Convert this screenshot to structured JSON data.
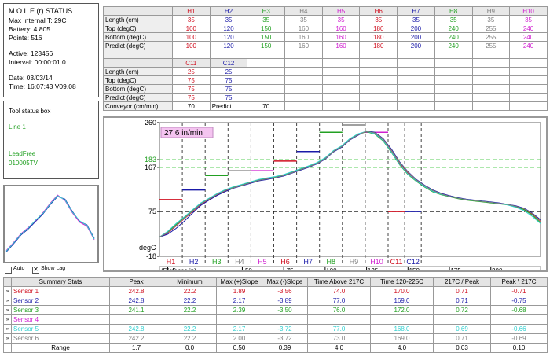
{
  "status": {
    "title": "M.O.L.E.(r) STATUS",
    "internal_temp": "Max Internal T: 29C",
    "battery": "Battery: 4.805",
    "points": "Points: 516",
    "active": "Active: 123456",
    "interval": "Interval: 00:00:01.0",
    "date": "Date: 03/03/14",
    "time": "Time: 16:07:43  V09.08"
  },
  "tool_status": {
    "title": "Tool status box",
    "line": "Line 1",
    "paste": "LeadFree",
    "code": "010005TV"
  },
  "preview": {
    "auto_label": "Auto",
    "show_lag_label": "Show Lag"
  },
  "zone_table": {
    "headers": [
      "H1",
      "H2",
      "H3",
      "H4",
      "H5",
      "H6",
      "H7",
      "H8",
      "H9",
      "H10"
    ],
    "header_colors": [
      "#d01020",
      "#1a1aa8",
      "#22a022",
      "#808080",
      "#d020d0",
      "#d01020",
      "#1a1aa8",
      "#22a022",
      "#808080",
      "#d020d0"
    ],
    "rows": [
      {
        "label": "Length (cm)",
        "values": [
          "35",
          "35",
          "35",
          "35",
          "35",
          "35",
          "35",
          "35",
          "35",
          "35"
        ]
      },
      {
        "label": "Top (degC)",
        "values": [
          "100",
          "120",
          "150",
          "160",
          "160",
          "180",
          "200",
          "240",
          "255",
          "240"
        ]
      },
      {
        "label": "Bottom (degC)",
        "values": [
          "100",
          "120",
          "150",
          "160",
          "160",
          "180",
          "200",
          "240",
          "255",
          "240"
        ]
      },
      {
        "label": "Predict (degC)",
        "values": [
          "100",
          "120",
          "150",
          "160",
          "160",
          "180",
          "200",
          "240",
          "255",
          "240"
        ]
      }
    ],
    "headers2": [
      "C11",
      "C12"
    ],
    "header2_colors": [
      "#d01020",
      "#1a1aa8"
    ],
    "rows2": [
      {
        "label": "Length (cm)",
        "values": [
          "25",
          "25"
        ]
      },
      {
        "label": "Top (degC)",
        "values": [
          "75",
          "75"
        ]
      },
      {
        "label": "Bottom (degC)",
        "values": [
          "75",
          "75"
        ]
      },
      {
        "label": "Predict (degC)",
        "values": [
          "75",
          "75"
        ]
      }
    ],
    "conveyor_label": "Conveyor (cm/min)",
    "conveyor_value": "70",
    "predict_label": "Predict",
    "predict_value": "70"
  },
  "chart_data": {
    "type": "line",
    "ylabel": "degC",
    "xlabel": "(Distance in)",
    "speed_label": "27.6 in/min",
    "y_ticks": [
      260,
      183,
      167,
      75,
      -18
    ],
    "ylim": [
      -18,
      260
    ],
    "x_ticks": [
      "5",
      "50",
      "75",
      "100",
      "125",
      "150",
      "175",
      "200"
    ],
    "x_tick_values": [
      5,
      50,
      75,
      100,
      125,
      150,
      175,
      200
    ],
    "xlim": [
      0,
      230
    ],
    "reference_lines": [
      {
        "value": 183,
        "color": "#22c022"
      },
      {
        "value": 167,
        "color": "#22c022"
      },
      {
        "value": 75,
        "color": "#000000"
      }
    ],
    "zones": [
      {
        "label": "H1",
        "color": "#d01020",
        "start": 0,
        "end": 13.8,
        "setpoint": 100
      },
      {
        "label": "H2",
        "color": "#1a1aa8",
        "start": 13.8,
        "end": 27.6,
        "setpoint": 120
      },
      {
        "label": "H3",
        "color": "#22a022",
        "start": 27.6,
        "end": 41.4,
        "setpoint": 150
      },
      {
        "label": "H4",
        "color": "#808080",
        "start": 41.4,
        "end": 55.2,
        "setpoint": 160
      },
      {
        "label": "H5",
        "color": "#d020d0",
        "start": 55.2,
        "end": 69,
        "setpoint": 160
      },
      {
        "label": "H6",
        "color": "#d01020",
        "start": 69,
        "end": 82.8,
        "setpoint": 180
      },
      {
        "label": "H7",
        "color": "#1a1aa8",
        "start": 82.8,
        "end": 96.6,
        "setpoint": 200
      },
      {
        "label": "H8",
        "color": "#22a022",
        "start": 96.6,
        "end": 110.4,
        "setpoint": 240
      },
      {
        "label": "H9",
        "color": "#808080",
        "start": 110.4,
        "end": 124.2,
        "setpoint": 255
      },
      {
        "label": "H10",
        "color": "#d020d0",
        "start": 124.2,
        "end": 138,
        "setpoint": 240
      },
      {
        "label": "C11",
        "color": "#d01020",
        "start": 138,
        "end": 148,
        "setpoint": 75
      },
      {
        "label": "C12",
        "color": "#1a1aa8",
        "start": 148,
        "end": 158,
        "setpoint": 75
      }
    ],
    "series": [
      {
        "name": "Sensor 1",
        "color": "#d01020",
        "x": [
          0,
          5,
          10,
          15,
          20,
          25,
          30,
          35,
          40,
          45,
          50,
          55,
          60,
          65,
          70,
          75,
          80,
          85,
          90,
          95,
          100,
          105,
          110,
          115,
          120,
          125,
          130,
          135,
          140,
          145,
          150,
          155,
          160,
          165,
          170,
          175,
          180,
          185,
          190,
          195,
          200,
          205,
          210,
          215,
          220,
          225,
          230
        ],
        "y": [
          22,
          30,
          45,
          60,
          75,
          90,
          100,
          110,
          118,
          125,
          130,
          135,
          140,
          143,
          146,
          150,
          156,
          162,
          168,
          175,
          185,
          200,
          210,
          225,
          235,
          242,
          238,
          225,
          200,
          175,
          155,
          140,
          128,
          118,
          112,
          108,
          103,
          100,
          98,
          96,
          94,
          92,
          90,
          86,
          80,
          70,
          55
        ]
      },
      {
        "name": "Sensor 2",
        "color": "#1a1aa8",
        "x": [
          0,
          5,
          10,
          15,
          20,
          25,
          30,
          35,
          40,
          45,
          50,
          55,
          60,
          65,
          70,
          75,
          80,
          85,
          90,
          95,
          100,
          105,
          110,
          115,
          120,
          125,
          130,
          135,
          140,
          145,
          150,
          155,
          160,
          165,
          170,
          175,
          180,
          185,
          190,
          195,
          200,
          205,
          210,
          215,
          220,
          225,
          230
        ],
        "y": [
          22,
          28,
          40,
          55,
          72,
          88,
          99,
          109,
          117,
          124,
          129,
          134,
          139,
          142,
          145,
          149,
          155,
          161,
          167,
          174,
          184,
          199,
          209,
          224,
          234,
          243,
          240,
          227,
          205,
          178,
          158,
          142,
          130,
          120,
          113,
          108,
          104,
          101,
          99,
          97,
          95,
          93,
          90,
          87,
          82,
          72,
          58
        ]
      },
      {
        "name": "Sensor 3",
        "color": "#22a022",
        "x": [
          0,
          5,
          10,
          15,
          20,
          25,
          30,
          35,
          40,
          45,
          50,
          55,
          60,
          65,
          70,
          75,
          80,
          85,
          90,
          95,
          100,
          105,
          110,
          115,
          120,
          125,
          130,
          135,
          140,
          145,
          150,
          155,
          160,
          165,
          170,
          175,
          180,
          185,
          190,
          195,
          200,
          205,
          210,
          215,
          220,
          225,
          230
        ],
        "y": [
          22,
          32,
          48,
          63,
          78,
          92,
          102,
          112,
          120,
          126,
          131,
          136,
          141,
          144,
          147,
          151,
          157,
          163,
          169,
          176,
          186,
          201,
          211,
          226,
          236,
          241,
          236,
          222,
          198,
          172,
          152,
          138,
          126,
          116,
          110,
          106,
          102,
          99,
          97,
          95,
          93,
          91,
          89,
          85,
          79,
          68,
          52
        ]
      },
      {
        "name": "Sensor 5",
        "color": "#30d0d0",
        "x": [
          0,
          5,
          10,
          15,
          20,
          25,
          30,
          35,
          40,
          45,
          50,
          55,
          60,
          65,
          70,
          75,
          80,
          85,
          90,
          95,
          100,
          105,
          110,
          115,
          120,
          125,
          130,
          135,
          140,
          145,
          150,
          155,
          160,
          165,
          170,
          175,
          180,
          185,
          190,
          195,
          200,
          205,
          210,
          215,
          220,
          225,
          230
        ],
        "y": [
          22,
          34,
          50,
          64,
          79,
          93,
          103,
          113,
          121,
          127,
          132,
          137,
          142,
          145,
          148,
          152,
          158,
          164,
          170,
          177,
          187,
          202,
          212,
          227,
          237,
          242,
          237,
          223,
          199,
          173,
          153,
          139,
          127,
          117,
          111,
          107,
          103,
          100,
          98,
          96,
          94,
          92,
          89,
          84,
          77,
          65,
          50
        ]
      },
      {
        "name": "Sensor 6",
        "color": "#808080",
        "x": [
          0,
          5,
          10,
          15,
          20,
          25,
          30,
          35,
          40,
          45,
          50,
          55,
          60,
          65,
          70,
          75,
          80,
          85,
          90,
          95,
          100,
          105,
          110,
          115,
          120,
          125,
          130,
          135,
          140,
          145,
          150,
          155,
          160,
          165,
          170,
          175,
          180,
          185,
          190,
          195,
          200,
          205,
          210,
          215,
          220,
          225,
          230
        ],
        "y": [
          22,
          31,
          46,
          61,
          76,
          91,
          101,
          111,
          119,
          125,
          130,
          135,
          140,
          143,
          146,
          150,
          156,
          162,
          168,
          175,
          185,
          200,
          210,
          225,
          235,
          242,
          239,
          226,
          203,
          177,
          157,
          141,
          129,
          119,
          112,
          107,
          103,
          100,
          98,
          96,
          94,
          92,
          90,
          86,
          81,
          71,
          56
        ]
      }
    ]
  },
  "preview_data": {
    "series": [
      {
        "color": "#1a1aa8",
        "x": [
          0,
          10,
          20,
          30,
          40,
          50,
          60,
          70,
          80,
          90,
          100,
          110,
          120
        ],
        "y": [
          10,
          22,
          35,
          44,
          55,
          66,
          80,
          92,
          88,
          70,
          55,
          50,
          30
        ]
      },
      {
        "color": "#d020d0",
        "x": [
          0,
          10,
          20,
          30,
          40,
          50,
          60,
          70,
          80,
          90,
          100,
          110,
          120
        ],
        "y": [
          12,
          24,
          37,
          46,
          56,
          68,
          82,
          94,
          86,
          68,
          54,
          48,
          28
        ]
      },
      {
        "color": "#30d0d0",
        "x": [
          0,
          10,
          20,
          30,
          40,
          50,
          60,
          70,
          80,
          90,
          100,
          110,
          120
        ],
        "y": [
          11,
          23,
          36,
          45,
          57,
          67,
          81,
          93,
          87,
          69,
          56,
          49,
          29
        ]
      }
    ]
  },
  "summary": {
    "headers": [
      "Summary Stats",
      "Peak",
      "Minimum",
      "Max (+)Slope",
      "Max (-)Slope",
      "Time Above 217C",
      "Time 120-225C",
      "217C / Peak",
      "Peak \\ 217C"
    ],
    "rows": [
      {
        "name": "Sensor 1",
        "color": "#d01020",
        "values": [
          "242.8",
          "22.2",
          "1.89",
          "-3.56",
          "74.0",
          "170.0",
          "0.71",
          "-0.71"
        ]
      },
      {
        "name": "Sensor 2",
        "color": "#1a1aa8",
        "values": [
          "242.8",
          "22.2",
          "2.17",
          "-3.89",
          "77.0",
          "169.0",
          "0.71",
          "-0.75"
        ]
      },
      {
        "name": "Sensor 3",
        "color": "#22a022",
        "values": [
          "241.1",
          "22.2",
          "2.39",
          "-3.50",
          "76.0",
          "172.0",
          "0.72",
          "-0.68"
        ]
      },
      {
        "name": "Sensor 4",
        "color": "#d020d0",
        "values": [
          "",
          "",
          "",
          "",
          "",
          "",
          "",
          ""
        ]
      },
      {
        "name": "Sensor 5",
        "color": "#30d0d0",
        "values": [
          "242.8",
          "22.2",
          "2.17",
          "-3.72",
          "77.0",
          "168.0",
          "0.69",
          "-0.66"
        ]
      },
      {
        "name": "Sensor 6",
        "color": "#808080",
        "values": [
          "242.2",
          "22.2",
          "2.00",
          "-3.72",
          "73.0",
          "169.0",
          "0.71",
          "-0.69"
        ]
      },
      {
        "name": "Range",
        "color": "#000000",
        "values": [
          "1.7",
          "0.0",
          "0.50",
          "0.39",
          "4.0",
          "4.0",
          "0.03",
          "0.10"
        ]
      }
    ]
  }
}
